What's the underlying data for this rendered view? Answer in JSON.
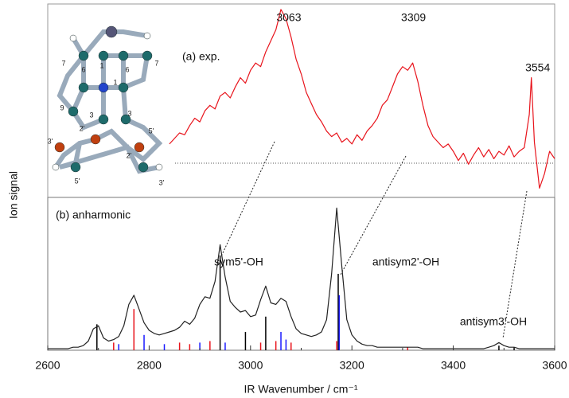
{
  "chart_data": [
    {
      "type": "line",
      "label": "(a) exp.",
      "xlim": [
        2600,
        3600
      ],
      "ylim": [
        -0.05,
        1
      ],
      "x": [
        2840,
        2850,
        2860,
        2870,
        2880,
        2890,
        2900,
        2910,
        2920,
        2930,
        2940,
        2950,
        2960,
        2970,
        2980,
        2990,
        3000,
        3010,
        3020,
        3030,
        3040,
        3050,
        3060,
        3070,
        3080,
        3090,
        3100,
        3110,
        3120,
        3130,
        3140,
        3150,
        3160,
        3170,
        3180,
        3190,
        3200,
        3210,
        3220,
        3230,
        3240,
        3250,
        3260,
        3270,
        3280,
        3290,
        3300,
        3310,
        3320,
        3330,
        3340,
        3350,
        3360,
        3370,
        3380,
        3390,
        3400,
        3410,
        3420,
        3430,
        3440,
        3450,
        3460,
        3470,
        3480,
        3490,
        3500,
        3510,
        3520,
        3530,
        3540,
        3550,
        3554,
        3560,
        3570,
        3580,
        3590,
        3600
      ],
      "series": [
        {
          "color": "#e8141c",
          "values": [
            0.24,
            0.27,
            0.3,
            0.29,
            0.34,
            0.38,
            0.36,
            0.42,
            0.45,
            0.43,
            0.5,
            0.52,
            0.49,
            0.55,
            0.6,
            0.57,
            0.64,
            0.68,
            0.66,
            0.74,
            0.8,
            0.86,
            0.97,
            0.92,
            0.82,
            0.7,
            0.62,
            0.52,
            0.46,
            0.4,
            0.36,
            0.31,
            0.28,
            0.3,
            0.25,
            0.27,
            0.24,
            0.29,
            0.26,
            0.31,
            0.34,
            0.38,
            0.45,
            0.48,
            0.55,
            0.62,
            0.66,
            0.64,
            0.68,
            0.58,
            0.45,
            0.34,
            0.28,
            0.25,
            0.22,
            0.24,
            0.2,
            0.15,
            0.19,
            0.13,
            0.18,
            0.22,
            0.17,
            0.21,
            0.16,
            0.2,
            0.18,
            0.23,
            0.17,
            0.2,
            0.22,
            0.4,
            0.6,
            0.25,
            0.0,
            0.08,
            0.2,
            0.16
          ]
        }
      ],
      "peaks": [
        3063,
        3309,
        3554
      ]
    },
    {
      "type": "line",
      "label": "(b) anharmonic",
      "xlim": [
        2600,
        3600
      ],
      "ylim": [
        0,
        1
      ],
      "xticks": [
        2600,
        2800,
        3000,
        3200,
        3400,
        3600
      ],
      "xminorticks": [
        2700,
        2900,
        3100,
        3300,
        3500
      ],
      "xlabel": "IR Wavenumber / cm⁻¹",
      "ylabel": "Ion signal",
      "x": [
        2600,
        2610,
        2620,
        2630,
        2640,
        2650,
        2660,
        2670,
        2680,
        2690,
        2700,
        2710,
        2720,
        2730,
        2740,
        2750,
        2760,
        2770,
        2780,
        2790,
        2800,
        2810,
        2820,
        2830,
        2840,
        2850,
        2860,
        2870,
        2880,
        2890,
        2900,
        2910,
        2920,
        2930,
        2940,
        2950,
        2960,
        2970,
        2980,
        2990,
        3000,
        3010,
        3020,
        3030,
        3040,
        3050,
        3060,
        3070,
        3080,
        3090,
        3100,
        3110,
        3120,
        3130,
        3140,
        3150,
        3160,
        3170,
        3180,
        3190,
        3200,
        3210,
        3220,
        3230,
        3240,
        3250,
        3260,
        3270,
        3280,
        3290,
        3300,
        3310,
        3320,
        3330,
        3340,
        3350,
        3360,
        3370,
        3380,
        3390,
        3400,
        3410,
        3420,
        3430,
        3440,
        3450,
        3460,
        3470,
        3480,
        3490,
        3500,
        3510,
        3520,
        3530,
        3540,
        3550,
        3560,
        3570,
        3580,
        3590,
        3600
      ],
      "series": [
        {
          "color": "#222222",
          "values": [
            0.01,
            0.01,
            0.01,
            0.01,
            0.01,
            0.02,
            0.02,
            0.03,
            0.06,
            0.14,
            0.16,
            0.08,
            0.06,
            0.07,
            0.09,
            0.16,
            0.3,
            0.36,
            0.27,
            0.18,
            0.13,
            0.11,
            0.1,
            0.11,
            0.12,
            0.13,
            0.15,
            0.19,
            0.17,
            0.21,
            0.3,
            0.35,
            0.34,
            0.45,
            0.69,
            0.48,
            0.32,
            0.28,
            0.25,
            0.26,
            0.22,
            0.23,
            0.33,
            0.42,
            0.31,
            0.3,
            0.34,
            0.32,
            0.22,
            0.14,
            0.11,
            0.1,
            0.09,
            0.1,
            0.12,
            0.2,
            0.5,
            0.93,
            0.55,
            0.2,
            0.1,
            0.06,
            0.04,
            0.03,
            0.03,
            0.02,
            0.02,
            0.02,
            0.02,
            0.02,
            0.02,
            0.02,
            0.02,
            0.02,
            0.01,
            0.01,
            0.01,
            0.01,
            0.01,
            0.01,
            0.01,
            0.01,
            0.01,
            0.01,
            0.01,
            0.01,
            0.01,
            0.02,
            0.03,
            0.05,
            0.03,
            0.02,
            0.02,
            0.01,
            0.01,
            0.01,
            0.01,
            0.01,
            0.01,
            0.01,
            0.01
          ]
        }
      ],
      "sticks": [
        {
          "color": "#000000",
          "x": [
            2697,
            2940,
            2990,
            3030,
            3173,
            3490,
            3520
          ],
          "values": [
            0.17,
            0.62,
            0.12,
            0.22,
            0.5,
            0.03,
            0.02
          ]
        },
        {
          "color": "#e8141c",
          "x": [
            2730,
            2770,
            2860,
            2880,
            2920,
            3020,
            3050,
            3080,
            3170,
            3310
          ],
          "values": [
            0.05,
            0.27,
            0.05,
            0.04,
            0.06,
            0.05,
            0.06,
            0.05,
            0.06,
            0.02
          ]
        },
        {
          "color": "#1a1aff",
          "x": [
            2740,
            2790,
            2830,
            2900,
            2950,
            3060,
            3070,
            3175
          ],
          "values": [
            0.04,
            0.1,
            0.04,
            0.05,
            0.05,
            0.12,
            0.07,
            0.36
          ]
        }
      ],
      "annotations": [
        "sym5'-OH",
        "antisym2'-OH",
        "antisym3'-OH"
      ]
    }
  ],
  "inset": {
    "labels": [
      "7",
      "6",
      "1",
      "6",
      "7",
      "1",
      "9",
      "3",
      "3",
      "2'",
      "5'",
      "2'",
      "3'",
      "5'",
      "3'"
    ]
  }
}
